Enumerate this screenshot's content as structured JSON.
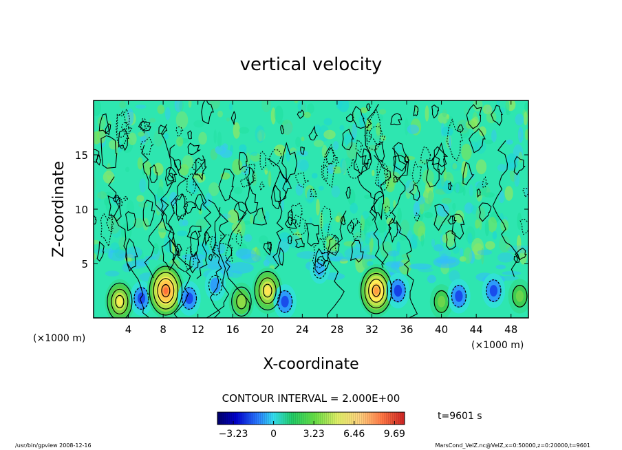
{
  "chart_data": {
    "type": "heatmap",
    "title": "vertical velocity",
    "xlabel": "X-coordinate",
    "ylabel": "Z-coordinate",
    "x_unit_note_left": "(×1000 m)",
    "x_unit_note_right": "(×1000 m)",
    "xlim": [
      0,
      50
    ],
    "ylim": [
      0,
      20
    ],
    "xticks": [
      4,
      8,
      12,
      16,
      20,
      24,
      28,
      32,
      36,
      40,
      44,
      48
    ],
    "xtick_labels": [
      "4",
      "8",
      "12",
      "16",
      "20",
      "24",
      "28",
      "32",
      "36",
      "40",
      "44",
      "48"
    ],
    "yticks": [
      5,
      10,
      15
    ],
    "ytick_labels": [
      "5",
      "10",
      "15"
    ],
    "contour_interval_text": "CONTOUR INTERVAL = 2.000E+00",
    "time_text": "t=9601 s",
    "colorbar_ticks": [
      -3.23,
      0,
      3.23,
      6.46,
      9.69
    ],
    "colorbar_labels": [
      "−3.23",
      "0",
      "3.23",
      "6.46",
      "9.69"
    ],
    "colorbar_range": [
      -4.5,
      10.5
    ],
    "features": [
      {
        "x": 3,
        "z": 1.5,
        "value": 6.0
      },
      {
        "x": 5.5,
        "z": 1.8,
        "value": -3.0
      },
      {
        "x": 8.3,
        "z": 2.5,
        "value": 9.5
      },
      {
        "x": 11,
        "z": 1.8,
        "value": -3.0
      },
      {
        "x": 14,
        "z": 3,
        "value": -2.0
      },
      {
        "x": 17,
        "z": 1.5,
        "value": 4.0
      },
      {
        "x": 20,
        "z": 2.5,
        "value": 6.5
      },
      {
        "x": 22,
        "z": 1.5,
        "value": -3.0
      },
      {
        "x": 26,
        "z": 4.5,
        "value": -1.5
      },
      {
        "x": 32.5,
        "z": 2.5,
        "value": 8.5
      },
      {
        "x": 35,
        "z": 2.5,
        "value": -3.2
      },
      {
        "x": 40,
        "z": 1.5,
        "value": 3.0
      },
      {
        "x": 42,
        "z": 2,
        "value": -3.0
      },
      {
        "x": 46,
        "z": 2.5,
        "value": -3.0
      },
      {
        "x": 49,
        "z": 2,
        "value": 3.0
      }
    ]
  },
  "footer": {
    "left_text": "/usr/bin/gpview  2008-12-16",
    "right_text": "MarsCond_VelZ.nc@VelZ,x=0:50000,z=0:20000,t=9601"
  },
  "colors": {
    "background_field": "#2ee6b0",
    "frame": "#000000"
  }
}
